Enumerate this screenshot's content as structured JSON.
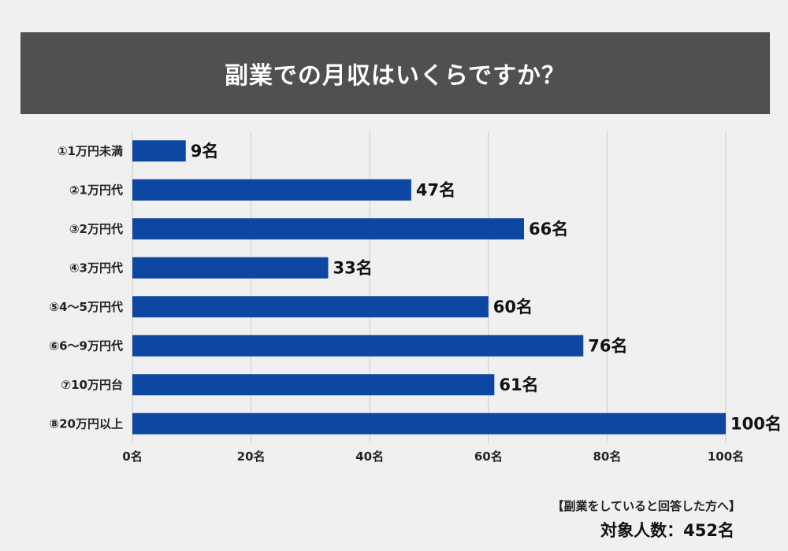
{
  "title": "副業での月収はいくらですか？",
  "footnote": "【副業をしていると回答した方へ】",
  "total_label": "対象人数：452名",
  "colors": {
    "bar": "#0d47a1",
    "title_bg": "#505050",
    "grid": "#cccccc",
    "background": "#f0f0f0"
  },
  "chart_data": {
    "type": "bar",
    "orientation": "horizontal",
    "title": "副業での月収はいくらですか？",
    "categories": [
      "①1万円未満",
      "②1万円代",
      "③2万円代",
      "④3万円代",
      "⑤4～5万円代",
      "⑥6～9万円代",
      "⑦10万円台",
      "⑧20万円以上"
    ],
    "values": [
      9,
      47,
      66,
      33,
      60,
      76,
      61,
      100
    ],
    "value_labels": [
      "9名",
      "47名",
      "66名",
      "33名",
      "60名",
      "76名",
      "61名",
      "100名"
    ],
    "x_ticks": [
      0,
      20,
      40,
      60,
      80,
      100
    ],
    "x_tick_labels": [
      "0名",
      "20名",
      "40名",
      "60名",
      "80名",
      "100名"
    ],
    "xlim": [
      0,
      100
    ],
    "grid": true,
    "xlabel": "",
    "ylabel": ""
  }
}
